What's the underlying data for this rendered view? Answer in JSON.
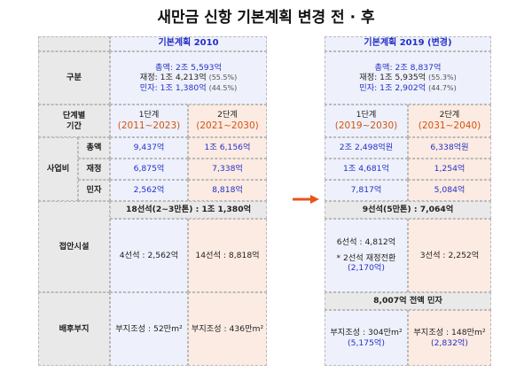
{
  "title": "새만금 신항 기본계획 변경 전 · 후",
  "row_labels": {
    "category": "구분",
    "phase": "단계별\n기간",
    "cost": "사업비",
    "cost_total": "총액",
    "cost_fiscal": "재정",
    "cost_private": "민자",
    "berth": "접안시설",
    "hinterland": "배후부지"
  },
  "left": {
    "header": "기본계획 2010",
    "summary_total": "총액: 2조 5,593억",
    "summary_fiscal": "재정: 1조 4,213억",
    "summary_fiscal_pct": "(55.5%)",
    "summary_private": "민자: 1조 1,380억",
    "summary_private_pct": "(44.5%)",
    "phase1_label": "1단계",
    "phase1_range": "(2011~2023)",
    "phase2_label": "2단계",
    "phase2_range": "(2021~2030)",
    "p1_total": "9,437억",
    "p1_fiscal": "6,875억",
    "p1_private": "2,562억",
    "p2_total": "1조 6,156억",
    "p2_fiscal": "7,338억",
    "p2_private": "8,818억",
    "berth_total": "18선석(2~3만톤) : 1조 1,380억",
    "berth_p1": "4선석 : 2,562억",
    "berth_p2": "14선석 : 8,818억",
    "land_p1": "부지조성 : 52만m²",
    "land_p2": "부지조성 : 436만m²"
  },
  "right": {
    "header": "기본계획 2019 (변경)",
    "summary_total": "총액: 2조 8,837억",
    "summary_fiscal": "재정: 1조 5,935억",
    "summary_fiscal_pct": "(55.3%)",
    "summary_private": "민자: 1조 2,902억",
    "summary_private_pct": "(44.7%)",
    "phase1_label": "1단계",
    "phase1_range": "(2019~2030)",
    "phase2_label": "2단계",
    "phase2_range": "(2031~2040)",
    "p1_total": "2조 2,498억원",
    "p1_fiscal": "1조 4,681억",
    "p1_private": "7,817억",
    "p2_total": "6,338억원",
    "p2_fiscal": "1,254억",
    "p2_private": "5,084억",
    "berth_total": "9선석(5만톤) : 7,064억",
    "berth_p1_line1": "6선석 : 4,812억",
    "berth_p1_line2": "* 2선석 재정전환",
    "berth_p1_line3": "(2,170억)",
    "berth_p2": "3선석 : 2,252억",
    "land_total": "8,007억 전액 민자",
    "land_p1": "부지조성 : 304만m²",
    "land_p1_amt": "(5,175억)",
    "land_p2": "부지조성 : 148만m²",
    "land_p2_amt": "(2,832억)"
  },
  "colors": {
    "blue": "#2430c8",
    "orange": "#d4530e",
    "arrow": "#e8541a"
  }
}
